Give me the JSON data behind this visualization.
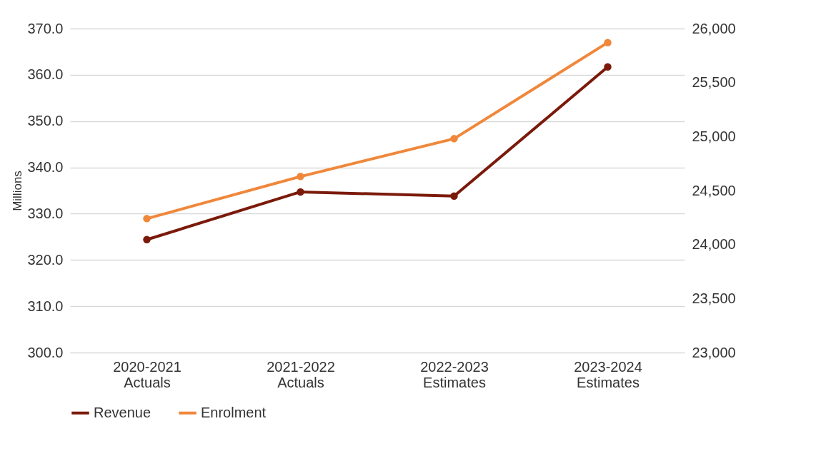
{
  "chart_data": {
    "type": "line",
    "categories": [
      "2020-2021\nActuals",
      "2021-2022\nActuals",
      "2022-2023\nEstimates",
      "2023-2024\nEstimates"
    ],
    "ylabel": "Millions",
    "series": [
      {
        "name": "Revenue",
        "color": "#7b1a0b",
        "values": [
          324.4,
          334.7,
          333.8,
          361.7
        ]
      },
      {
        "name": "Enrolment",
        "color": "#f0873a",
        "axis": "y2",
        "values": [
          24240,
          24630,
          24980,
          25870
        ]
      }
    ],
    "ylim": [
      300,
      370
    ],
    "yticks": [
      {
        "value": 300,
        "label": "300.0"
      },
      {
        "value": 310,
        "label": "310.0"
      },
      {
        "value": 320,
        "label": "320.0"
      },
      {
        "value": 330,
        "label": "330.0"
      },
      {
        "value": 340,
        "label": "340.0"
      },
      {
        "value": 350,
        "label": "350.0"
      },
      {
        "value": 360,
        "label": "360.0"
      },
      {
        "value": 370,
        "label": "370.0"
      }
    ],
    "y2lim": [
      23000,
      26000
    ],
    "y2ticks": [
      {
        "value": 23000,
        "label": "23,000"
      },
      {
        "value": 23500,
        "label": "23,500"
      },
      {
        "value": 24000,
        "label": "24,000"
      },
      {
        "value": 24500,
        "label": "24,500"
      },
      {
        "value": 25000,
        "label": "25,000"
      },
      {
        "value": 25500,
        "label": "25,500"
      },
      {
        "value": 26000,
        "label": "26,000"
      }
    ],
    "grid": "y",
    "legend": "bottom",
    "marker": "circle",
    "line_style": "solid"
  }
}
